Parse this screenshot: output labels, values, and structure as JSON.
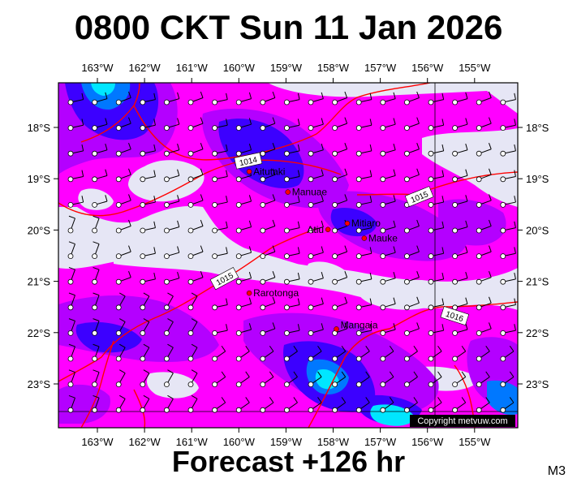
{
  "title": "0800 CKT Sun 11 Jan 2026",
  "subtitle": "Forecast +126 hr",
  "map_code": "M3",
  "copyright": "Copyright metvuw.com",
  "lon_labels": [
    "163°W",
    "162°W",
    "161°W",
    "160°W",
    "159°W",
    "158°W",
    "157°W",
    "156°W",
    "155°W"
  ],
  "lat_labels": [
    "18°S",
    "19°S",
    "20°S",
    "21°S",
    "22°S",
    "23°S"
  ],
  "places": [
    {
      "name": "Aitutaki",
      "lon": -159.78,
      "lat": -18.86
    },
    {
      "name": "Manuae",
      "lon": -158.96,
      "lat": -19.26
    },
    {
      "name": "Mitiaro",
      "lon": -157.7,
      "lat": -19.87
    },
    {
      "name": "Atiu",
      "lon": -158.11,
      "lat": -19.99
    },
    {
      "name": "Mauke",
      "lon": -157.34,
      "lat": -20.16
    },
    {
      "name": "Rarotonga",
      "lon": -159.78,
      "lat": -21.23
    },
    {
      "name": "Mangaia",
      "lon": -157.93,
      "lat": -21.93
    }
  ],
  "isobars": [
    {
      "label": "1014"
    },
    {
      "label": "1015"
    },
    {
      "label": "1015"
    },
    {
      "label": "1016"
    }
  ],
  "colors": {
    "background": "#e6e6f5",
    "precip_light": "#ff00ff",
    "precip_mid": "#b400ff",
    "precip_heavy": "#3c00ff",
    "precip_very_heavy": "#0078ff",
    "precip_extreme": "#00e6ff",
    "isobar": "#ff0000",
    "place_marker": "#ff0000"
  }
}
